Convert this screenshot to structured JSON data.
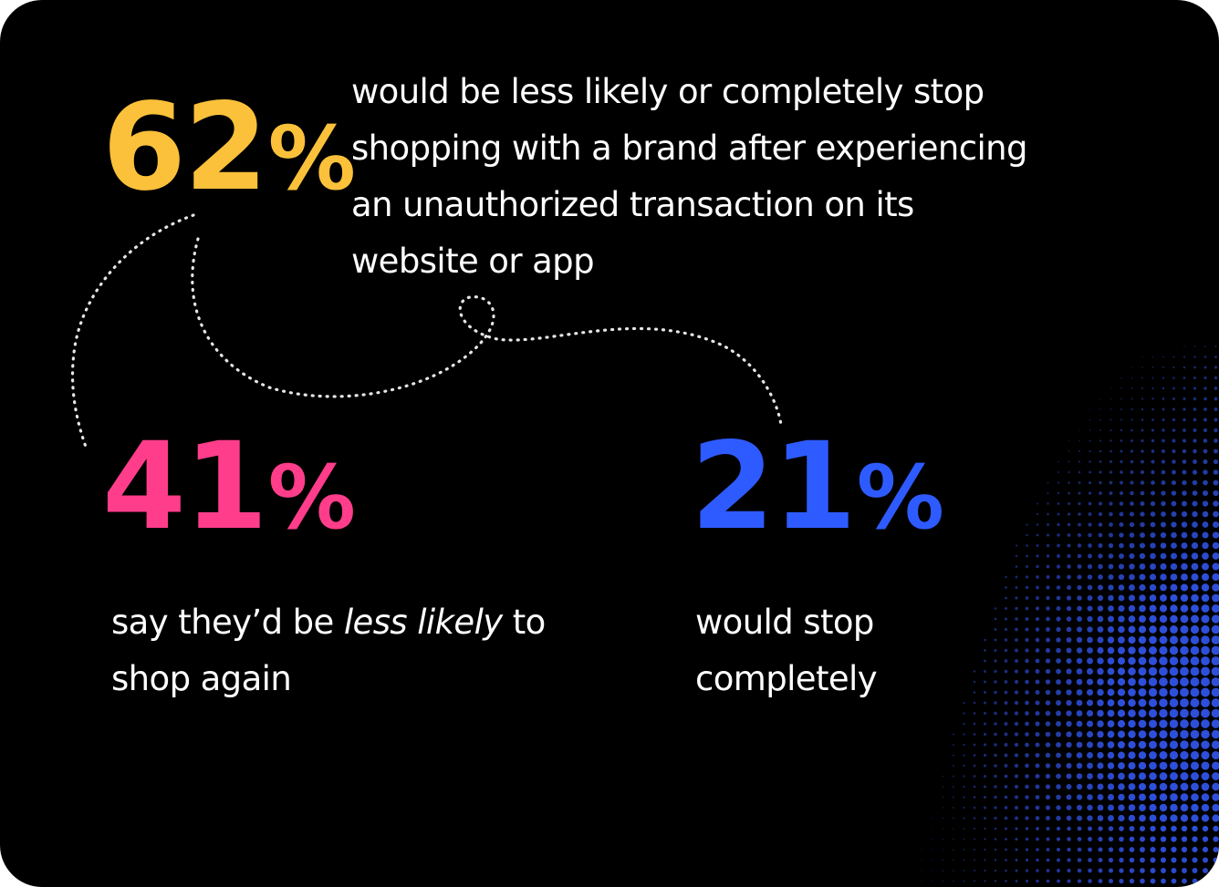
{
  "colors": {
    "background": "#000000",
    "stat_62": "#FBC13A",
    "stat_41": "#FF3D8B",
    "stat_21": "#2E5BFF",
    "text": "#FFFFFF",
    "halftone": "#2E4FD9"
  },
  "stats": {
    "s62": {
      "value": "62",
      "unit": "%",
      "lines": [
        "would be less likely or completely stop",
        "shopping with a brand after experiencing",
        "an unauthorized transaction on its",
        "website or app"
      ]
    },
    "s41": {
      "value": "41",
      "unit": "%",
      "line1_before": "say they’d be ",
      "line1_emphasis": "less likely",
      "line1_after": " to",
      "line2": "shop again"
    },
    "s21": {
      "value": "21",
      "unit": "%",
      "lines": [
        "would stop",
        "completely"
      ]
    }
  }
}
